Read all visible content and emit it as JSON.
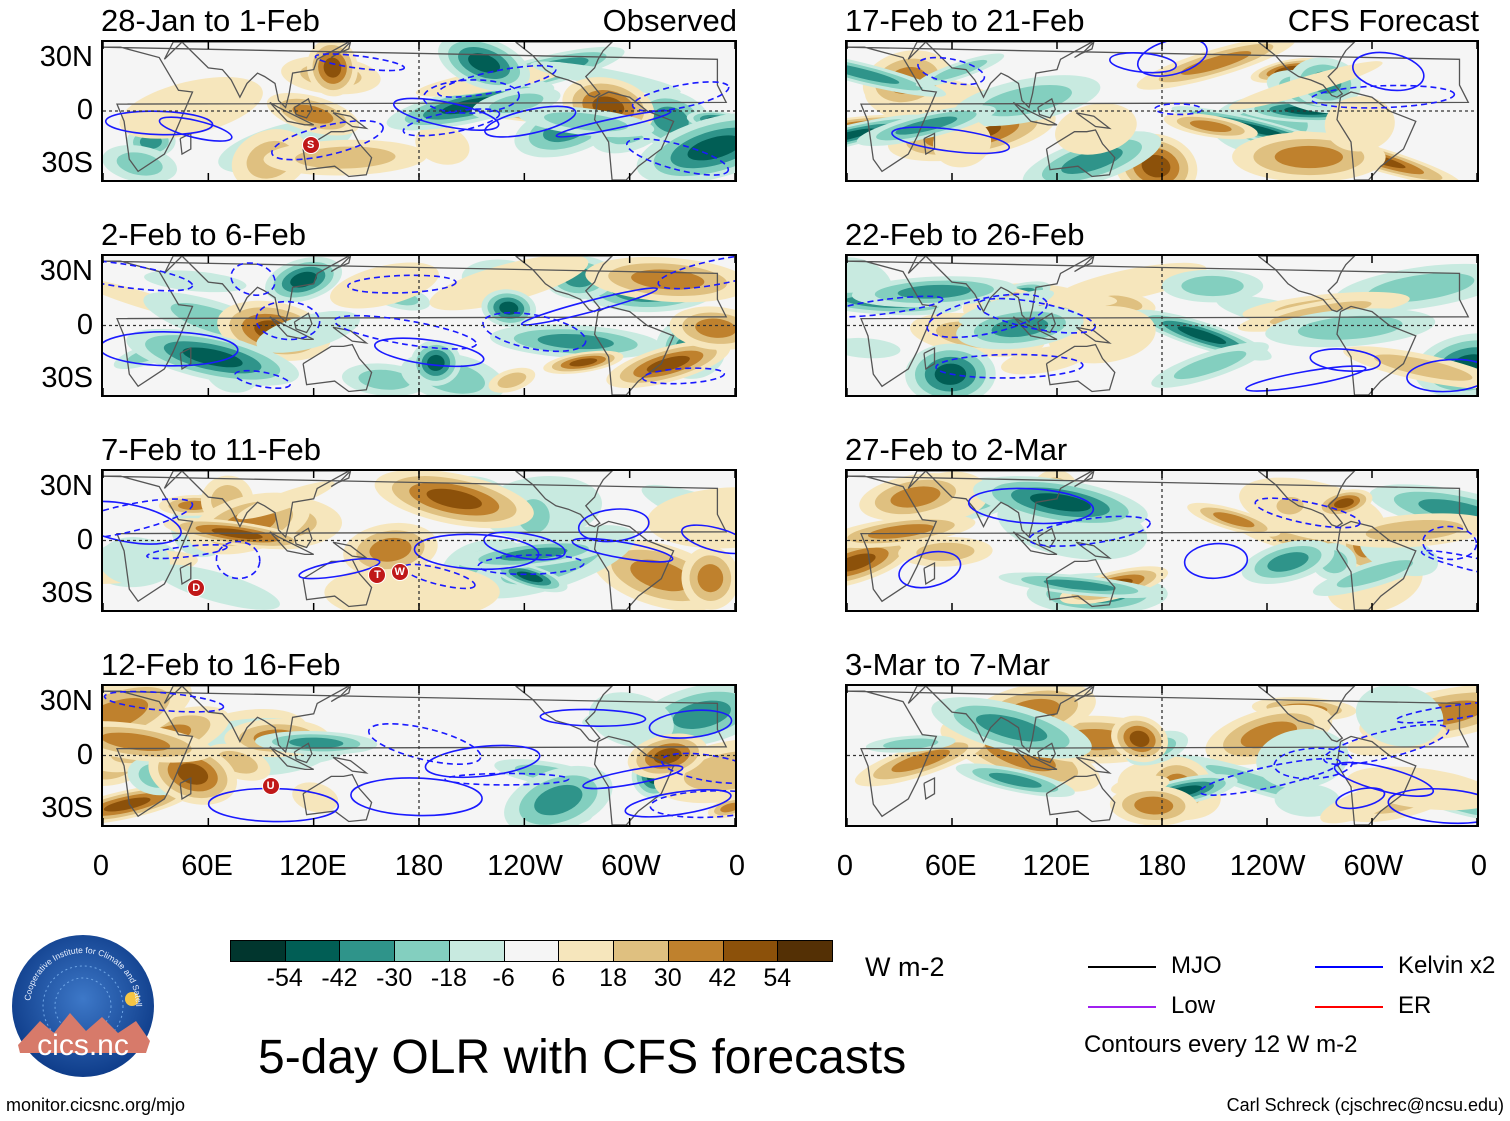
{
  "chart_data": {
    "type": "heatmap",
    "title": "5-day OLR with CFS forecasts",
    "units": "W m-2",
    "x_ticks": [
      "0",
      "60E",
      "120E",
      "180",
      "120W",
      "60W",
      "0"
    ],
    "y_ticks": [
      "30N",
      "0",
      "30S"
    ],
    "panels": [
      {
        "period": "28-Jan to 1-Feb",
        "tag": "Observed",
        "storms": [
          "S"
        ]
      },
      {
        "period": "2-Feb to 6-Feb",
        "tag": "",
        "storms": []
      },
      {
        "period": "7-Feb to 11-Feb",
        "tag": "",
        "storms": [
          "D",
          "T",
          "W"
        ]
      },
      {
        "period": "12-Feb to 16-Feb",
        "tag": "",
        "storms": [
          "U"
        ]
      },
      {
        "period": "17-Feb to 21-Feb",
        "tag": "CFS Forecast",
        "storms": []
      },
      {
        "period": "22-Feb to 26-Feb",
        "tag": "",
        "storms": []
      },
      {
        "period": "27-Feb to 2-Mar",
        "tag": "",
        "storms": []
      },
      {
        "period": "3-Mar to 7-Mar",
        "tag": "",
        "storms": []
      }
    ],
    "colorbar": {
      "labels": [
        "-54",
        "-42",
        "-30",
        "-18",
        "-6",
        "6",
        "18",
        "30",
        "42",
        "54"
      ],
      "colors": [
        "#01362e",
        "#015e55",
        "#2f948a",
        "#83cfbf",
        "#c8eae0",
        "#f5f5f5",
        "#f6e6bc",
        "#dfc080",
        "#bf812d",
        "#8c510a",
        "#543005"
      ]
    },
    "legend": [
      {
        "label": "MJO",
        "color": "#000000"
      },
      {
        "label": "Kelvin x2",
        "color": "#0000ff"
      },
      {
        "label": "Low",
        "color": "#a020f0"
      },
      {
        "label": "ER",
        "color": "#ff0000"
      }
    ],
    "contour_note": "Contours every 12 W m-2"
  },
  "footer": {
    "logo_text": "cics.nc",
    "logo_ring_text": "Cooperative Institute for Climate and Satellites",
    "url": "monitor.cicsnc.org/mjo",
    "credit": "Carl Schreck (cjschrec@ncsu.edu)"
  }
}
